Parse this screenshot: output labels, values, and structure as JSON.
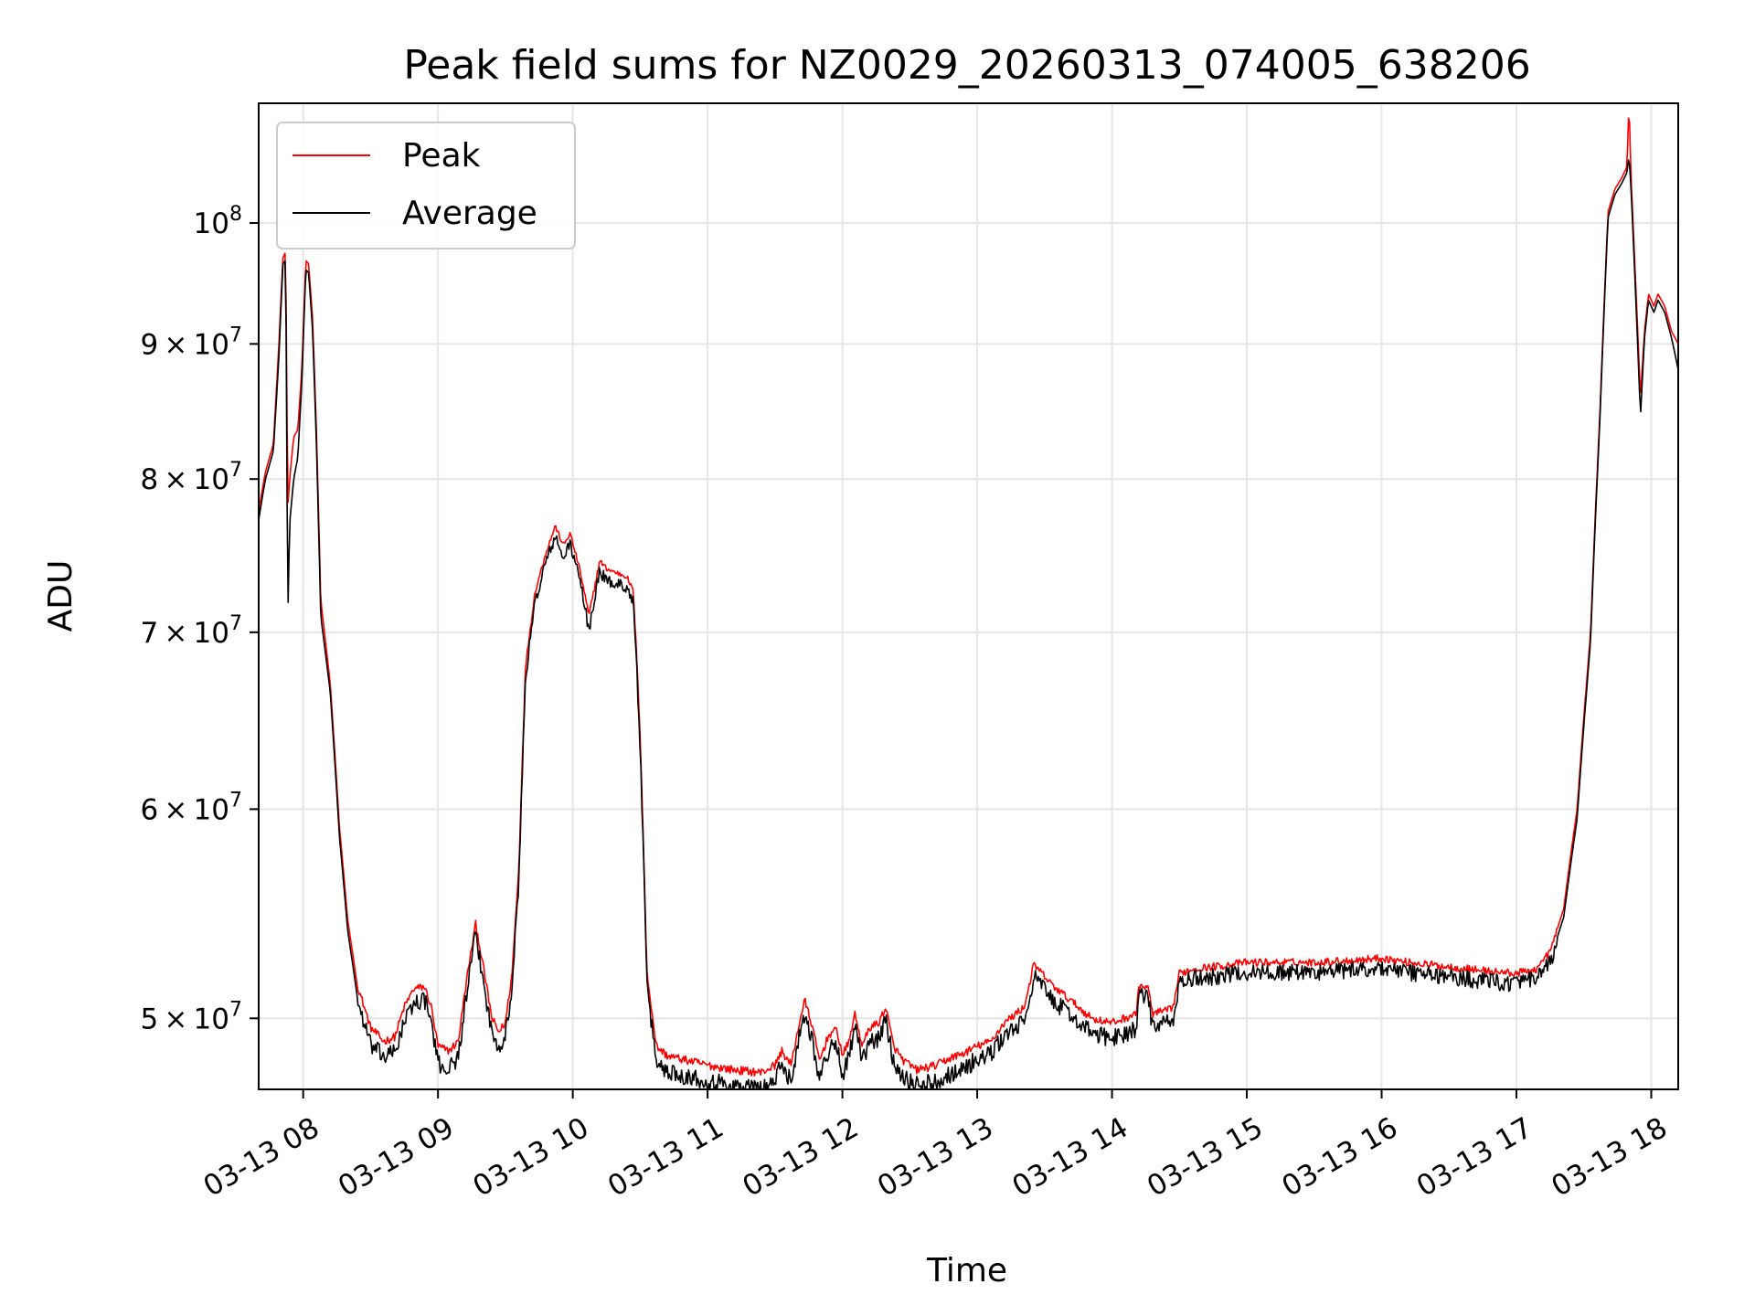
{
  "chart_data": {
    "type": "line",
    "title": "Peak field sums for NZ0029_20260313_074005_638206",
    "xlabel": "Time",
    "ylabel": "ADU",
    "yscale": "log",
    "grid": true,
    "legend_position": "top-left",
    "xlim_hours": [
      7.67,
      18.2
    ],
    "ylim": [
      47000000,
      111000000
    ],
    "x_ticks": [
      {
        "hour": 8,
        "label": "03-13 08"
      },
      {
        "hour": 9,
        "label": "03-13 09"
      },
      {
        "hour": 10,
        "label": "03-13 10"
      },
      {
        "hour": 11,
        "label": "03-13 11"
      },
      {
        "hour": 12,
        "label": "03-13 12"
      },
      {
        "hour": 13,
        "label": "03-13 13"
      },
      {
        "hour": 14,
        "label": "03-13 14"
      },
      {
        "hour": 15,
        "label": "03-13 15"
      },
      {
        "hour": 16,
        "label": "03-13 16"
      },
      {
        "hour": 17,
        "label": "03-13 17"
      },
      {
        "hour": 18,
        "label": "03-13 18"
      }
    ],
    "y_ticks": [
      {
        "value": 50000000,
        "mantissa": "5",
        "exponent": "7"
      },
      {
        "value": 60000000,
        "mantissa": "6",
        "exponent": "7"
      },
      {
        "value": 70000000,
        "mantissa": "7",
        "exponent": "7"
      },
      {
        "value": 80000000,
        "mantissa": "8",
        "exponent": "7"
      },
      {
        "value": 90000000,
        "mantissa": "9",
        "exponent": "7"
      },
      {
        "value": 100000000,
        "mantissa": "",
        "exponent": "8"
      }
    ],
    "y_tick_base": "10",
    "y_tick_times": "×",
    "series": [
      {
        "name": "Peak",
        "color": "#ff0000",
        "points": [
          [
            7.67,
            77.8
          ],
          [
            7.72,
            80.5
          ],
          [
            7.78,
            82.5
          ],
          [
            7.82,
            90
          ],
          [
            7.85,
            97
          ],
          [
            7.87,
            97.5
          ],
          [
            7.885,
            78
          ],
          [
            7.9,
            80
          ],
          [
            7.93,
            83
          ],
          [
            7.96,
            83.5
          ],
          [
            7.99,
            88
          ],
          [
            8.02,
            96.8
          ],
          [
            8.04,
            96.5
          ],
          [
            8.07,
            92
          ],
          [
            8.1,
            83
          ],
          [
            8.13,
            72
          ],
          [
            8.2,
            67
          ],
          [
            8.27,
            59
          ],
          [
            8.33,
            54.5
          ],
          [
            8.4,
            51.5
          ],
          [
            8.5,
            49.6
          ],
          [
            8.6,
            49
          ],
          [
            8.68,
            49.2
          ],
          [
            8.75,
            50.5
          ],
          [
            8.82,
            51.3
          ],
          [
            8.9,
            51.4
          ],
          [
            8.95,
            50.5
          ],
          [
            9.0,
            48.8
          ],
          [
            9.08,
            48.6
          ],
          [
            9.15,
            49
          ],
          [
            9.22,
            52
          ],
          [
            9.28,
            54.3
          ],
          [
            9.33,
            52.5
          ],
          [
            9.4,
            50
          ],
          [
            9.45,
            49.4
          ],
          [
            9.5,
            49.8
          ],
          [
            9.55,
            52
          ],
          [
            9.6,
            57
          ],
          [
            9.65,
            68
          ],
          [
            9.72,
            72.5
          ],
          [
            9.8,
            75
          ],
          [
            9.87,
            76.8
          ],
          [
            9.93,
            75.5
          ],
          [
            9.98,
            76.3
          ],
          [
            10.05,
            74
          ],
          [
            10.12,
            71
          ],
          [
            10.2,
            74.5
          ],
          [
            10.25,
            74
          ],
          [
            10.3,
            73.8
          ],
          [
            10.4,
            73.5
          ],
          [
            10.45,
            72.5
          ],
          [
            10.5,
            64
          ],
          [
            10.55,
            52
          ],
          [
            10.62,
            48.8
          ],
          [
            10.7,
            48.4
          ],
          [
            10.85,
            48.2
          ],
          [
            11.0,
            48
          ],
          [
            11.2,
            47.8
          ],
          [
            11.4,
            47.7
          ],
          [
            11.5,
            48
          ],
          [
            11.55,
            48.6
          ],
          [
            11.62,
            48
          ],
          [
            11.68,
            49.8
          ],
          [
            11.72,
            50.8
          ],
          [
            11.77,
            49.8
          ],
          [
            11.83,
            48.2
          ],
          [
            11.9,
            49.3
          ],
          [
            11.96,
            49.5
          ],
          [
            12.0,
            48.4
          ],
          [
            12.05,
            49
          ],
          [
            12.09,
            50.2
          ],
          [
            12.15,
            48.8
          ],
          [
            12.2,
            49.6
          ],
          [
            12.27,
            49.8
          ],
          [
            12.32,
            50.5
          ],
          [
            12.38,
            48.8
          ],
          [
            12.45,
            48.2
          ],
          [
            12.55,
            47.8
          ],
          [
            12.7,
            48
          ],
          [
            12.8,
            48.3
          ],
          [
            12.9,
            48.5
          ],
          [
            13.0,
            48.8
          ],
          [
            13.1,
            49
          ],
          [
            13.2,
            49.8
          ],
          [
            13.35,
            50.5
          ],
          [
            13.42,
            52.4
          ],
          [
            13.48,
            52
          ],
          [
            13.55,
            51.5
          ],
          [
            13.65,
            51
          ],
          [
            13.75,
            50.5
          ],
          [
            13.85,
            50
          ],
          [
            14.0,
            49.8
          ],
          [
            14.18,
            50.2
          ],
          [
            14.2,
            51.5
          ],
          [
            14.27,
            51.3
          ],
          [
            14.3,
            50.2
          ],
          [
            14.45,
            50.4
          ],
          [
            14.5,
            52
          ],
          [
            14.6,
            52.2
          ],
          [
            14.75,
            52.3
          ],
          [
            15.0,
            52.5
          ],
          [
            15.2,
            52.5
          ],
          [
            15.5,
            52.5
          ],
          [
            15.8,
            52.6
          ],
          [
            16.0,
            52.7
          ],
          [
            16.2,
            52.5
          ],
          [
            16.5,
            52.3
          ],
          [
            16.8,
            52.1
          ],
          [
            17.0,
            52
          ],
          [
            17.15,
            52.2
          ],
          [
            17.25,
            53
          ],
          [
            17.35,
            55
          ],
          [
            17.45,
            60
          ],
          [
            17.55,
            70
          ],
          [
            17.62,
            85
          ],
          [
            17.68,
            101
          ],
          [
            17.73,
            103
          ],
          [
            17.78,
            104
          ],
          [
            17.82,
            105
          ],
          [
            17.835,
            111
          ],
          [
            17.85,
            104
          ],
          [
            17.88,
            96
          ],
          [
            17.92,
            86
          ],
          [
            17.95,
            91
          ],
          [
            17.98,
            94
          ],
          [
            18.02,
            93
          ],
          [
            18.05,
            94
          ],
          [
            18.1,
            93
          ],
          [
            18.15,
            91
          ],
          [
            18.2,
            90
          ]
        ]
      },
      {
        "name": "Average",
        "color": "#000000",
        "points": [
          [
            7.67,
            77.2
          ],
          [
            7.72,
            80
          ],
          [
            7.78,
            82
          ],
          [
            7.82,
            89
          ],
          [
            7.85,
            96.5
          ],
          [
            7.87,
            96.8
          ],
          [
            7.885,
            70.5
          ],
          [
            7.9,
            77
          ],
          [
            7.93,
            80
          ],
          [
            7.96,
            81.5
          ],
          [
            7.99,
            87
          ],
          [
            8.02,
            96
          ],
          [
            8.04,
            95.8
          ],
          [
            8.07,
            91
          ],
          [
            8.1,
            82
          ],
          [
            8.13,
            71
          ],
          [
            8.2,
            66.5
          ],
          [
            8.27,
            58.5
          ],
          [
            8.33,
            54
          ],
          [
            8.4,
            51
          ],
          [
            8.5,
            49
          ],
          [
            8.6,
            48.5
          ],
          [
            8.68,
            48.7
          ],
          [
            8.75,
            50
          ],
          [
            8.82,
            50.8
          ],
          [
            8.9,
            51
          ],
          [
            8.95,
            50
          ],
          [
            9.0,
            48.2
          ],
          [
            9.08,
            48
          ],
          [
            9.15,
            48.5
          ],
          [
            9.22,
            51.5
          ],
          [
            9.28,
            54
          ],
          [
            9.33,
            52
          ],
          [
            9.4,
            49.5
          ],
          [
            9.45,
            49
          ],
          [
            9.5,
            49.4
          ],
          [
            9.55,
            51.5
          ],
          [
            9.6,
            56.5
          ],
          [
            9.65,
            67.5
          ],
          [
            9.72,
            72
          ],
          [
            9.8,
            74.6
          ],
          [
            9.87,
            76.2
          ],
          [
            9.93,
            74.8
          ],
          [
            9.98,
            75.8
          ],
          [
            10.05,
            73.5
          ],
          [
            10.12,
            70.3
          ],
          [
            10.2,
            74
          ],
          [
            10.25,
            73.4
          ],
          [
            10.3,
            73.2
          ],
          [
            10.4,
            73
          ],
          [
            10.45,
            72
          ],
          [
            10.5,
            63.5
          ],
          [
            10.55,
            51.5
          ],
          [
            10.62,
            48.3
          ],
          [
            10.7,
            47.9
          ],
          [
            10.85,
            47.7
          ],
          [
            11.0,
            47.5
          ],
          [
            11.2,
            47.3
          ],
          [
            11.4,
            47.2
          ],
          [
            11.5,
            47.5
          ],
          [
            11.55,
            48.2
          ],
          [
            11.62,
            47.5
          ],
          [
            11.68,
            49.4
          ],
          [
            11.72,
            50.4
          ],
          [
            11.77,
            49.4
          ],
          [
            11.83,
            47.6
          ],
          [
            11.9,
            48.8
          ],
          [
            11.96,
            49
          ],
          [
            12.0,
            47.8
          ],
          [
            12.05,
            48.5
          ],
          [
            12.09,
            49.8
          ],
          [
            12.15,
            48.3
          ],
          [
            12.2,
            49.1
          ],
          [
            12.27,
            49.3
          ],
          [
            12.32,
            50.1
          ],
          [
            12.38,
            48.3
          ],
          [
            12.45,
            47.7
          ],
          [
            12.55,
            47.3
          ],
          [
            12.7,
            47.5
          ],
          [
            12.8,
            47.8
          ],
          [
            12.9,
            48
          ],
          [
            13.0,
            48.4
          ],
          [
            13.1,
            48.6
          ],
          [
            13.2,
            49.4
          ],
          [
            13.35,
            50
          ],
          [
            13.42,
            52
          ],
          [
            13.48,
            51.6
          ],
          [
            13.55,
            51
          ],
          [
            13.65,
            50.5
          ],
          [
            13.75,
            50
          ],
          [
            13.85,
            49.5
          ],
          [
            14.0,
            49.3
          ],
          [
            14.18,
            49.7
          ],
          [
            14.2,
            51.2
          ],
          [
            14.27,
            51
          ],
          [
            14.3,
            49.8
          ],
          [
            14.45,
            50
          ],
          [
            14.5,
            51.7
          ],
          [
            14.6,
            51.9
          ],
          [
            14.75,
            52
          ],
          [
            15.0,
            52.2
          ],
          [
            15.2,
            52.2
          ],
          [
            15.5,
            52.2
          ],
          [
            15.8,
            52.3
          ],
          [
            16.0,
            52.4
          ],
          [
            16.2,
            52.2
          ],
          [
            16.5,
            52
          ],
          [
            16.8,
            51.8
          ],
          [
            17.0,
            51.7
          ],
          [
            17.15,
            51.9
          ],
          [
            17.25,
            52.6
          ],
          [
            17.35,
            54.6
          ],
          [
            17.45,
            59.5
          ],
          [
            17.55,
            69.5
          ],
          [
            17.62,
            84.5
          ],
          [
            17.68,
            100.5
          ],
          [
            17.73,
            102.5
          ],
          [
            17.78,
            103.5
          ],
          [
            17.82,
            104.5
          ],
          [
            17.835,
            106
          ],
          [
            17.85,
            103
          ],
          [
            17.88,
            95
          ],
          [
            17.92,
            84.5
          ],
          [
            17.95,
            90.5
          ],
          [
            17.98,
            93.5
          ],
          [
            18.02,
            92.5
          ],
          [
            18.05,
            93.5
          ],
          [
            18.1,
            92.5
          ],
          [
            18.15,
            90.5
          ],
          [
            18.2,
            88
          ]
        ]
      }
    ]
  }
}
